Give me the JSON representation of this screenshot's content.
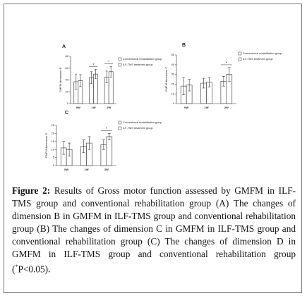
{
  "chart_data": [
    {
      "type": "bar",
      "title": "A",
      "y_label": "GMFM dimension B",
      "categories": [
        "0W",
        "1W",
        "2W"
      ],
      "series": [
        {
          "name": "Conventional rehabilitation group",
          "color": "#ffffff",
          "values": [
            37,
            44,
            45
          ],
          "errors": [
            13,
            10,
            10
          ]
        },
        {
          "name": "ILF-TMS treatment group",
          "color": "#ffffff",
          "values": [
            39,
            50,
            54
          ],
          "errors": [
            10,
            8,
            9
          ]
        }
      ],
      "significance": [
        null,
        "*",
        "*"
      ],
      "ylim": [
        0,
        80
      ],
      "yticks": [
        0,
        20,
        40,
        60,
        80
      ]
    },
    {
      "type": "bar",
      "title": "B",
      "y_label": "GMFM dimension C",
      "categories": [
        "0W",
        "1W",
        "2W"
      ],
      "series": [
        {
          "name": "Conventional rehabilitation group",
          "color": "#ffffff",
          "values": [
            18,
            21,
            23
          ],
          "errors": [
            9,
            5,
            5
          ]
        },
        {
          "name": "ILF-TMS treatment group",
          "color": "#ffffff",
          "values": [
            19,
            22,
            30
          ],
          "errors": [
            6,
            5,
            7
          ]
        }
      ],
      "significance": [
        null,
        null,
        "*"
      ],
      "ylim": [
        0,
        50
      ],
      "yticks": [
        0,
        10,
        20,
        30,
        40,
        50
      ]
    },
    {
      "type": "bar",
      "title": "C",
      "y_label": "GMFM dimension D",
      "categories": [
        "0W",
        "1W",
        "2W"
      ],
      "series": [
        {
          "name": "Conventional rehabilitation group",
          "color": "#ffffff",
          "values": [
            11,
            12,
            13
          ],
          "errors": [
            4,
            4,
            3
          ]
        },
        {
          "name": "ILF-TMS treatment group",
          "color": "#ffffff",
          "values": [
            10,
            14,
            18
          ],
          "errors": [
            4,
            4,
            2
          ]
        }
      ],
      "significance": [
        null,
        null,
        "*"
      ],
      "ylim": [
        0,
        25
      ],
      "yticks": [
        0,
        5,
        10,
        15,
        20,
        25
      ]
    }
  ],
  "caption": {
    "label": "Figure 2:",
    "body": "Results of Gross motor function assessed by GMFM in ILF-TMS group and conventional rehabilitation group (A) The changes of dimension B in GMFM in ILF-TMS group and conventional rehabilitation group (B) The changes of dimension C in GMFM in ILF-TMS group and conventional rehabilitation group (C) The changes of dimension D in GMFM in ILF-TMS group and conventional rehabilitation group (",
    "mark": "*",
    "end": "P<0.05)."
  }
}
